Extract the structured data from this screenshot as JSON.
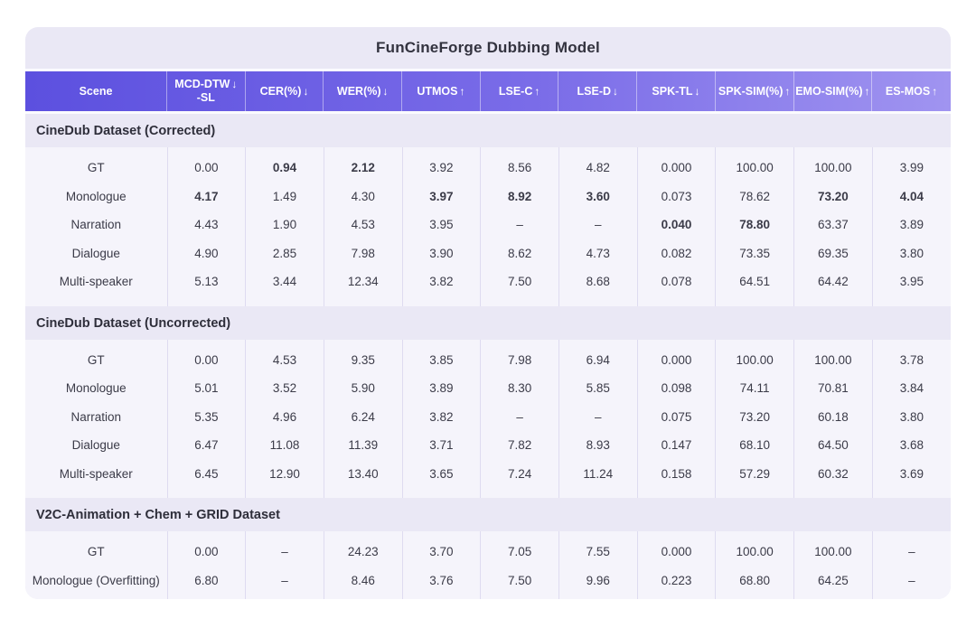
{
  "colors": {
    "header_gradient_left": "#5c50df",
    "header_gradient_right": "#a094f0",
    "card_background": "#eae8f5",
    "panel_background": "#f5f4fb",
    "separator": "#dedbf0",
    "highlight_value": "#5847d8",
    "header_text": "#ffffff",
    "body_text": "#3b3b48"
  },
  "chart_data": {
    "type": "table",
    "title": "FunCineForge Dubbing Model",
    "columns": [
      {
        "key": "scene",
        "label": "Scene",
        "arrow": "",
        "sub": ""
      },
      {
        "key": "mcd-dtw-sl",
        "label": "MCD-DTW",
        "arrow": "↓",
        "sub": "-SL"
      },
      {
        "key": "cer",
        "label": "CER(%)",
        "arrow": "↓",
        "sub": ""
      },
      {
        "key": "wer",
        "label": "WER(%)",
        "arrow": "↓",
        "sub": ""
      },
      {
        "key": "utmos",
        "label": "UTMOS",
        "arrow": "↑",
        "sub": ""
      },
      {
        "key": "lse-c",
        "label": "LSE-C",
        "arrow": "↑",
        "sub": ""
      },
      {
        "key": "lse-d",
        "label": "LSE-D",
        "arrow": "↓",
        "sub": ""
      },
      {
        "key": "spk-tl",
        "label": "SPK-TL",
        "arrow": "↓",
        "sub": ""
      },
      {
        "key": "spk-sim",
        "label": "SPK-SIM(%)",
        "arrow": "↑",
        "sub": ""
      },
      {
        "key": "emo-sim",
        "label": "EMO-SIM(%)",
        "arrow": "↑",
        "sub": ""
      },
      {
        "key": "es-mos",
        "label": "ES-MOS",
        "arrow": "↑",
        "sub": ""
      }
    ],
    "sections": [
      {
        "header": "CineDub Dataset (Corrected)",
        "rows": [
          {
            "scene": "GT",
            "values": [
              "0.00",
              "0.94",
              "2.12",
              "3.92",
              "8.56",
              "4.82",
              "0.000",
              "100.00",
              "100.00",
              "3.99"
            ],
            "bold": [
              1,
              2
            ]
          },
          {
            "scene": "Monologue",
            "values": [
              "4.17",
              "1.49",
              "4.30",
              "3.97",
              "8.92",
              "3.60",
              "0.073",
              "78.62",
              "73.20",
              "4.04"
            ],
            "bold": [
              0,
              3,
              4,
              5,
              8,
              9
            ]
          },
          {
            "scene": "Narration",
            "values": [
              "4.43",
              "1.90",
              "4.53",
              "3.95",
              "–",
              "–",
              "0.040",
              "78.80",
              "63.37",
              "3.89"
            ],
            "bold": [
              6,
              7
            ]
          },
          {
            "scene": "Dialogue",
            "values": [
              "4.90",
              "2.85",
              "7.98",
              "3.90",
              "8.62",
              "4.73",
              "0.082",
              "73.35",
              "69.35",
              "3.80"
            ],
            "bold": []
          },
          {
            "scene": "Multi-speaker",
            "values": [
              "5.13",
              "3.44",
              "12.34",
              "3.82",
              "7.50",
              "8.68",
              "0.078",
              "64.51",
              "64.42",
              "3.95"
            ],
            "bold": []
          }
        ]
      },
      {
        "header": "CineDub Dataset (Uncorrected)",
        "rows": [
          {
            "scene": "GT",
            "values": [
              "0.00",
              "4.53",
              "9.35",
              "3.85",
              "7.98",
              "6.94",
              "0.000",
              "100.00",
              "100.00",
              "3.78"
            ],
            "bold": []
          },
          {
            "scene": "Monologue",
            "values": [
              "5.01",
              "3.52",
              "5.90",
              "3.89",
              "8.30",
              "5.85",
              "0.098",
              "74.11",
              "70.81",
              "3.84"
            ],
            "bold": []
          },
          {
            "scene": "Narration",
            "values": [
              "5.35",
              "4.96",
              "6.24",
              "3.82",
              "–",
              "–",
              "0.075",
              "73.20",
              "60.18",
              "3.80"
            ],
            "bold": []
          },
          {
            "scene": "Dialogue",
            "values": [
              "6.47",
              "11.08",
              "11.39",
              "3.71",
              "7.82",
              "8.93",
              "0.147",
              "68.10",
              "64.50",
              "3.68"
            ],
            "bold": []
          },
          {
            "scene": "Multi-speaker",
            "values": [
              "6.45",
              "12.90",
              "13.40",
              "3.65",
              "7.24",
              "11.24",
              "0.158",
              "57.29",
              "60.32",
              "3.69"
            ],
            "bold": []
          }
        ]
      },
      {
        "header": "V2C-Animation + Chem + GRID Dataset",
        "rows": [
          {
            "scene": "GT",
            "values": [
              "0.00",
              "–",
              "24.23",
              "3.70",
              "7.05",
              "7.55",
              "0.000",
              "100.00",
              "100.00",
              "–"
            ],
            "bold": []
          },
          {
            "scene": "Monologue (Overfitting)",
            "values": [
              "6.80",
              "–",
              "8.46",
              "3.76",
              "7.50",
              "9.96",
              "0.223",
              "68.80",
              "64.25",
              "–"
            ],
            "bold": []
          }
        ]
      }
    ]
  }
}
